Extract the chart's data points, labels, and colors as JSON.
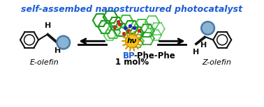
{
  "title": "self-assembed nanostructured photocatalyst",
  "title_color": "#1a5cd6",
  "title_fontsize": 9.0,
  "label_e": "E-olefin",
  "label_z": "Z-olefin",
  "bp_color": "#1a5cd6",
  "circle_facecolor": "#8ab4d4",
  "circle_edgecolor": "#4a7aaa",
  "sun_color": "#f5c518",
  "sun_edge": "#d4940a",
  "bg_color": "#ffffff",
  "bond_color": "#111111",
  "green_dark": "#1a9a1a",
  "green_mid": "#33bb33",
  "green_light": "#66cc66",
  "red_atom": "#cc2222",
  "blue_atom": "#2222cc",
  "arrow_lw": 2.2
}
